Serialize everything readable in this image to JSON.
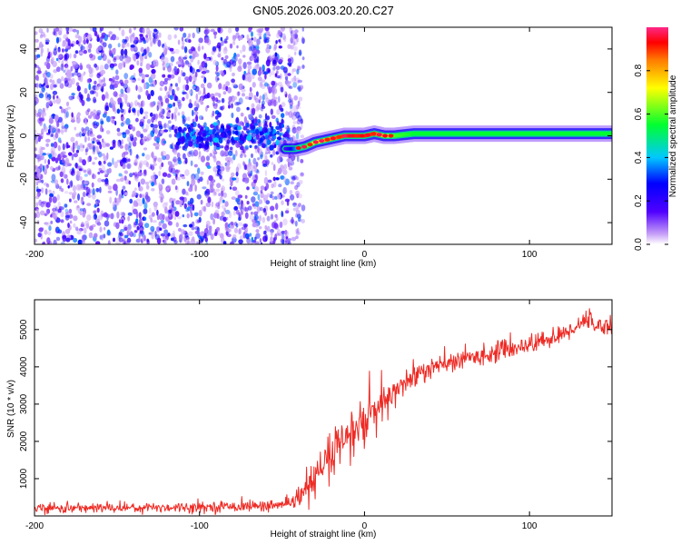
{
  "title": "GN05.2026.003.20.20.C27",
  "colors": {
    "snr_line": "#ee2a24",
    "scatter": "#6a1bef",
    "background": "#ffffff",
    "frame": "#000000"
  },
  "chart_data": [
    {
      "type": "heatmap",
      "title": "GN05.2026.003.20.20.C27",
      "xlabel": "Height of straight line (km)",
      "ylabel": "Frequency (Hz)",
      "xlim": [
        -200,
        150
      ],
      "ylim": [
        -50,
        50
      ],
      "xticks": [
        -200,
        -100,
        0,
        100
      ],
      "yticks": [
        -40,
        -20,
        0,
        20,
        40
      ],
      "colorbar": {
        "label": "Normalized spectral amplitude",
        "range": [
          0,
          1
        ],
        "ticks": [
          0.0,
          0.2,
          0.4,
          0.6,
          0.8
        ],
        "colormap": [
          "#ffffff",
          "#c49cf7",
          "#5000ff",
          "#0000ff",
          "#00c8ff",
          "#00ff30",
          "#ffff00",
          "#ff7a00",
          "#ff0000",
          "#ff2888"
        ]
      },
      "noise_region_x": [
        -200,
        -45
      ],
      "signal_line": {
        "x": [
          -48,
          -42,
          -36,
          -30,
          -24,
          -18,
          -12,
          -6,
          0,
          6,
          12,
          18,
          30,
          50,
          80,
          110,
          150
        ],
        "freq": [
          -6,
          -6,
          -5,
          -3,
          -2,
          -1,
          0,
          0,
          0,
          1,
          0,
          0,
          1,
          1,
          1,
          1,
          1
        ],
        "amplitude": [
          0.15,
          0.35,
          0.55,
          0.7,
          0.8,
          0.85,
          0.9,
          0.92,
          0.9,
          0.88,
          0.75,
          0.6,
          0.55,
          0.55,
          0.55,
          0.55,
          0.55
        ]
      }
    },
    {
      "type": "line",
      "xlabel": "Height of straight line (km)",
      "ylabel": "SNR (10 * v/v)",
      "xlim": [
        -200,
        150
      ],
      "ylim": [
        0,
        5800
      ],
      "xticks": [
        -200,
        -100,
        0,
        100
      ],
      "yticks": [
        1000,
        2000,
        3000,
        4000,
        5000
      ],
      "trend": {
        "x": [
          -200,
          -150,
          -100,
          -60,
          -45,
          -35,
          -25,
          -15,
          -5,
          5,
          15,
          20,
          30,
          40,
          60,
          80,
          100,
          120,
          135,
          140,
          150
        ],
        "y": [
          200,
          220,
          240,
          270,
          300,
          700,
          1300,
          1900,
          2300,
          2700,
          3100,
          3450,
          3750,
          3950,
          4200,
          4400,
          4600,
          4850,
          5300,
          5100,
          5100
        ]
      },
      "noise_amplitude": {
        "x": [
          -200,
          -45,
          -40,
          -20,
          0,
          20,
          40,
          150
        ],
        "y": [
          120,
          130,
          300,
          650,
          700,
          400,
          250,
          220
        ]
      }
    }
  ]
}
